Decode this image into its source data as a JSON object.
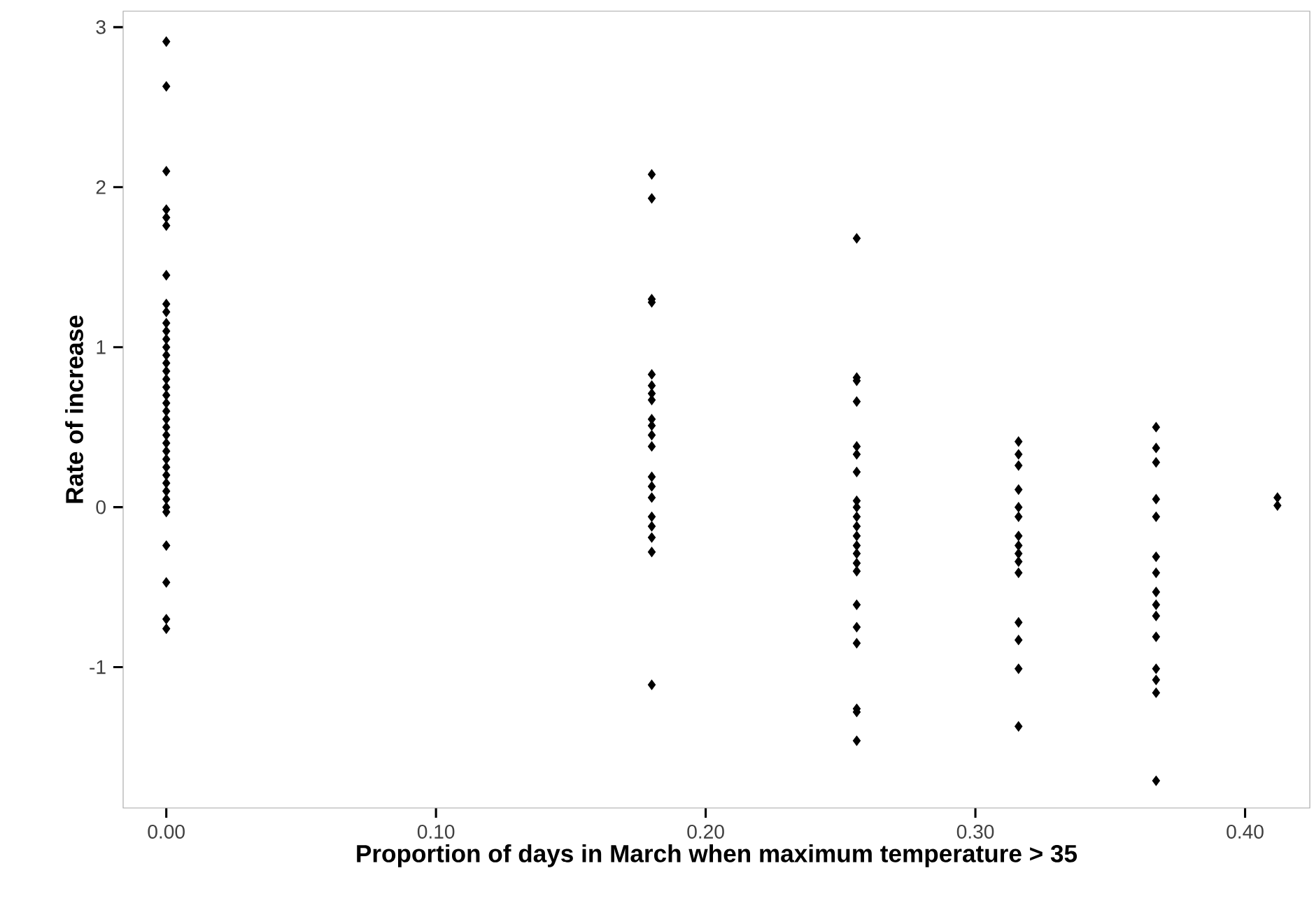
{
  "chart_data": {
    "type": "scatter",
    "xlabel": "Proportion of days in March when maximum temperature > 35",
    "ylabel": "Rate of increase",
    "marker": "diamond",
    "grid": false,
    "xlim": [
      -0.016,
      0.424
    ],
    "ylim": [
      -1.88,
      3.1
    ],
    "xticks": [
      {
        "value": 0,
        "label": "0.00"
      },
      {
        "value": 0.1,
        "label": "0.10"
      },
      {
        "value": 0.2,
        "label": "0.20"
      },
      {
        "value": 0.3,
        "label": "0.30"
      },
      {
        "value": 0.4,
        "label": "0.40"
      }
    ],
    "yticks": [
      -1,
      0,
      1,
      2,
      3
    ],
    "series": [
      {
        "color": "#000000",
        "x": [
          0,
          0,
          0,
          0,
          0,
          0,
          0,
          0,
          0,
          0,
          0,
          0,
          0,
          0,
          0,
          0,
          0,
          0,
          0,
          0,
          0,
          0,
          0,
          0,
          0,
          0,
          0,
          0,
          0,
          0,
          0,
          0,
          0,
          0,
          0,
          0,
          0,
          0,
          0.18,
          0.18,
          0.18,
          0.18,
          0.18,
          0.18,
          0.18,
          0.18,
          0.18,
          0.18,
          0.18,
          0.18,
          0.18,
          0.18,
          0.18,
          0.18,
          0.18,
          0.18,
          0.18,
          0.18,
          0.256,
          0.256,
          0.256,
          0.256,
          0.256,
          0.256,
          0.256,
          0.256,
          0.256,
          0.256,
          0.256,
          0.256,
          0.256,
          0.256,
          0.256,
          0.256,
          0.256,
          0.256,
          0.256,
          0.256,
          0.256,
          0.256,
          0.316,
          0.316,
          0.316,
          0.316,
          0.316,
          0.316,
          0.316,
          0.316,
          0.316,
          0.316,
          0.316,
          0.316,
          0.316,
          0.316,
          0.316,
          0.367,
          0.367,
          0.367,
          0.367,
          0.367,
          0.367,
          0.367,
          0.367,
          0.367,
          0.367,
          0.367,
          0.367,
          0.367,
          0.367,
          0.367,
          0.412,
          0.412
        ],
        "values": [
          2.91,
          2.63,
          2.1,
          1.86,
          1.81,
          1.76,
          1.45,
          1.27,
          1.22,
          1.15,
          1.1,
          1.05,
          1.0,
          0.95,
          0.9,
          0.85,
          0.8,
          0.75,
          0.7,
          0.65,
          0.6,
          0.55,
          0.5,
          0.45,
          0.4,
          0.35,
          0.3,
          0.25,
          0.2,
          0.15,
          0.1,
          0.05,
          0.0,
          -0.03,
          -0.24,
          -0.47,
          -0.7,
          -0.76,
          2.08,
          1.93,
          1.3,
          1.28,
          0.83,
          0.76,
          0.71,
          0.67,
          0.55,
          0.51,
          0.45,
          0.38,
          0.19,
          0.13,
          0.06,
          -0.06,
          -0.12,
          -0.19,
          -0.28,
          -1.11,
          1.68,
          0.81,
          0.79,
          0.66,
          0.38,
          0.33,
          0.22,
          0.04,
          0.0,
          -0.06,
          -0.12,
          -0.18,
          -0.24,
          -0.29,
          -0.35,
          -0.4,
          -0.61,
          -0.75,
          -0.85,
          -1.26,
          -1.28,
          -1.46,
          0.41,
          0.33,
          0.26,
          0.11,
          0.0,
          -0.06,
          -0.18,
          -0.24,
          -0.29,
          -0.34,
          -0.41,
          -0.72,
          -0.83,
          -1.01,
          -1.37,
          0.5,
          0.37,
          0.28,
          0.05,
          -0.06,
          -0.31,
          -0.41,
          -0.53,
          -0.61,
          -0.68,
          -0.81,
          -1.01,
          -1.08,
          -1.16,
          -1.71,
          0.06,
          0.01
        ]
      }
    ]
  }
}
